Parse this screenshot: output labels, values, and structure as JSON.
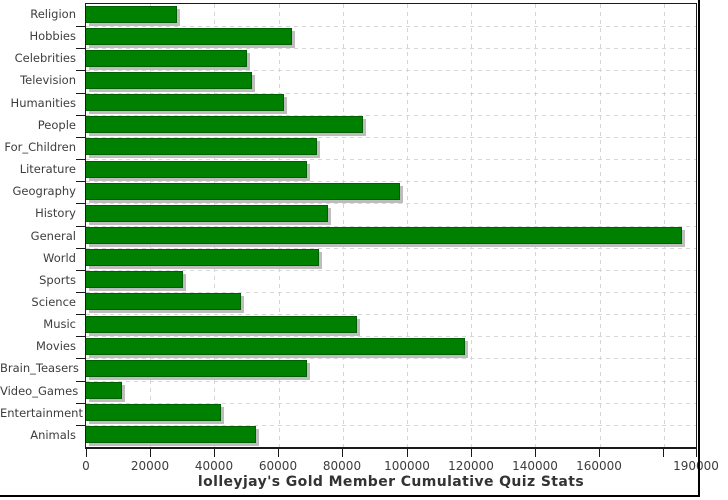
{
  "chart_data": {
    "type": "bar",
    "orientation": "horizontal",
    "title": "lolleyjay's Gold Member Cumulative Quiz Stats",
    "categories": [
      "Religion",
      "Hobbies",
      "Celebrities",
      "Television",
      "Humanities",
      "People",
      "For_Children",
      "Literature",
      "Geography",
      "History",
      "General",
      "World",
      "Sports",
      "Science",
      "Music",
      "Movies",
      "Brain_Teasers",
      "Video_Games",
      "Entertainment",
      "Animals"
    ],
    "values": [
      28300,
      64300,
      50100,
      51600,
      61700,
      86400,
      71900,
      68800,
      97800,
      75500,
      185500,
      72700,
      30300,
      48200,
      84300,
      118200,
      68700,
      11100,
      42000,
      52900
    ],
    "xlim": [
      0,
      190000
    ],
    "x_ticks": [
      {
        "value": 0,
        "label": "0"
      },
      {
        "value": 20000,
        "label": "20000"
      },
      {
        "value": 40000,
        "label": "40000"
      },
      {
        "value": 60000,
        "label": "60000"
      },
      {
        "value": 80000,
        "label": "80000"
      },
      {
        "value": 100000,
        "label": "100000"
      },
      {
        "value": 120000,
        "label": "120000"
      },
      {
        "value": 140000,
        "label": "140000"
      },
      {
        "value": 160000,
        "label": "160000"
      },
      {
        "value": 180000,
        "label": ""
      },
      {
        "value": 190000,
        "label": "190000"
      }
    ],
    "grid": "dashed",
    "legend": "none",
    "colors": {
      "bar_fill": "#008000",
      "bar_border": "#005f00",
      "bar_shadow": "#bdbdbd",
      "grid_line": "#d6d6d6",
      "axis_line": "#1a1a1a",
      "tick_text": "#3d3d3d",
      "title_text": "#333333"
    }
  }
}
